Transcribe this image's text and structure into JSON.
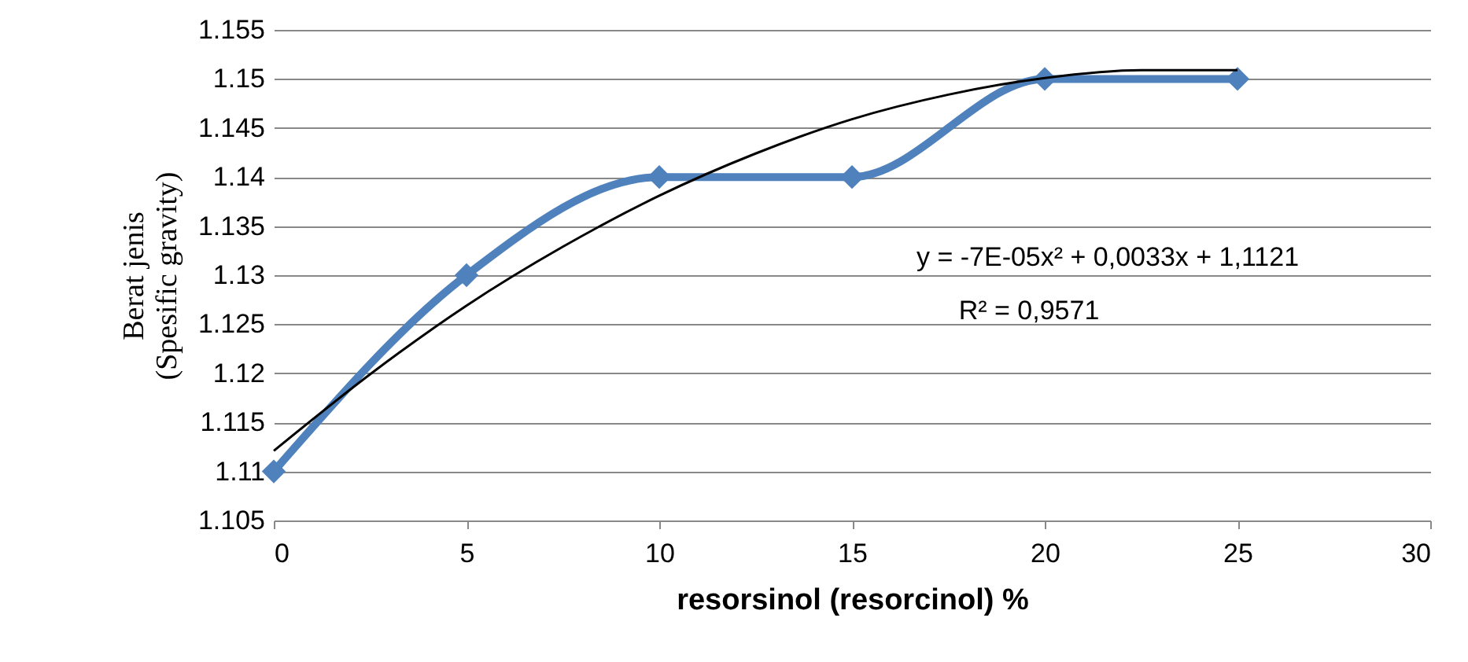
{
  "chart_data": {
    "type": "line",
    "xlabel": "resorsinol (resorcinol) %",
    "ylabel": "Berat jenis (Spesific gravity)",
    "x": [
      0,
      5,
      10,
      15,
      20,
      25
    ],
    "series": [
      {
        "color": "#4f81bd",
        "values": [
          1.11,
          1.13,
          1.14,
          1.14,
          1.15,
          1.15
        ],
        "marker": "diamond"
      },
      {
        "type": "line",
        "color": "#000000",
        "marker": "none",
        "x": [
          0,
          2.5,
          5,
          7.5,
          10,
          12.5,
          15,
          17.5,
          20,
          22.5,
          25
        ],
        "values": [
          1.1121,
          1.1199,
          1.1269,
          1.1329,
          1.1381,
          1.1424,
          1.1459,
          1.1484,
          1.1501,
          1.1509,
          1.1509
        ]
      }
    ],
    "annotations": [
      "y = -7E-05x² + 0,0033x + 1,1121",
      "R² = 0,9571"
    ],
    "xlim": [
      0,
      30
    ],
    "xticks": [
      0,
      5,
      10,
      15,
      20,
      25,
      30
    ],
    "ylim": [
      1.105,
      1.155
    ],
    "yticks": [
      1.105,
      1.11,
      1.115,
      1.12,
      1.125,
      1.13,
      1.135,
      1.14,
      1.145,
      1.15,
      1.155
    ],
    "grid": "y"
  }
}
